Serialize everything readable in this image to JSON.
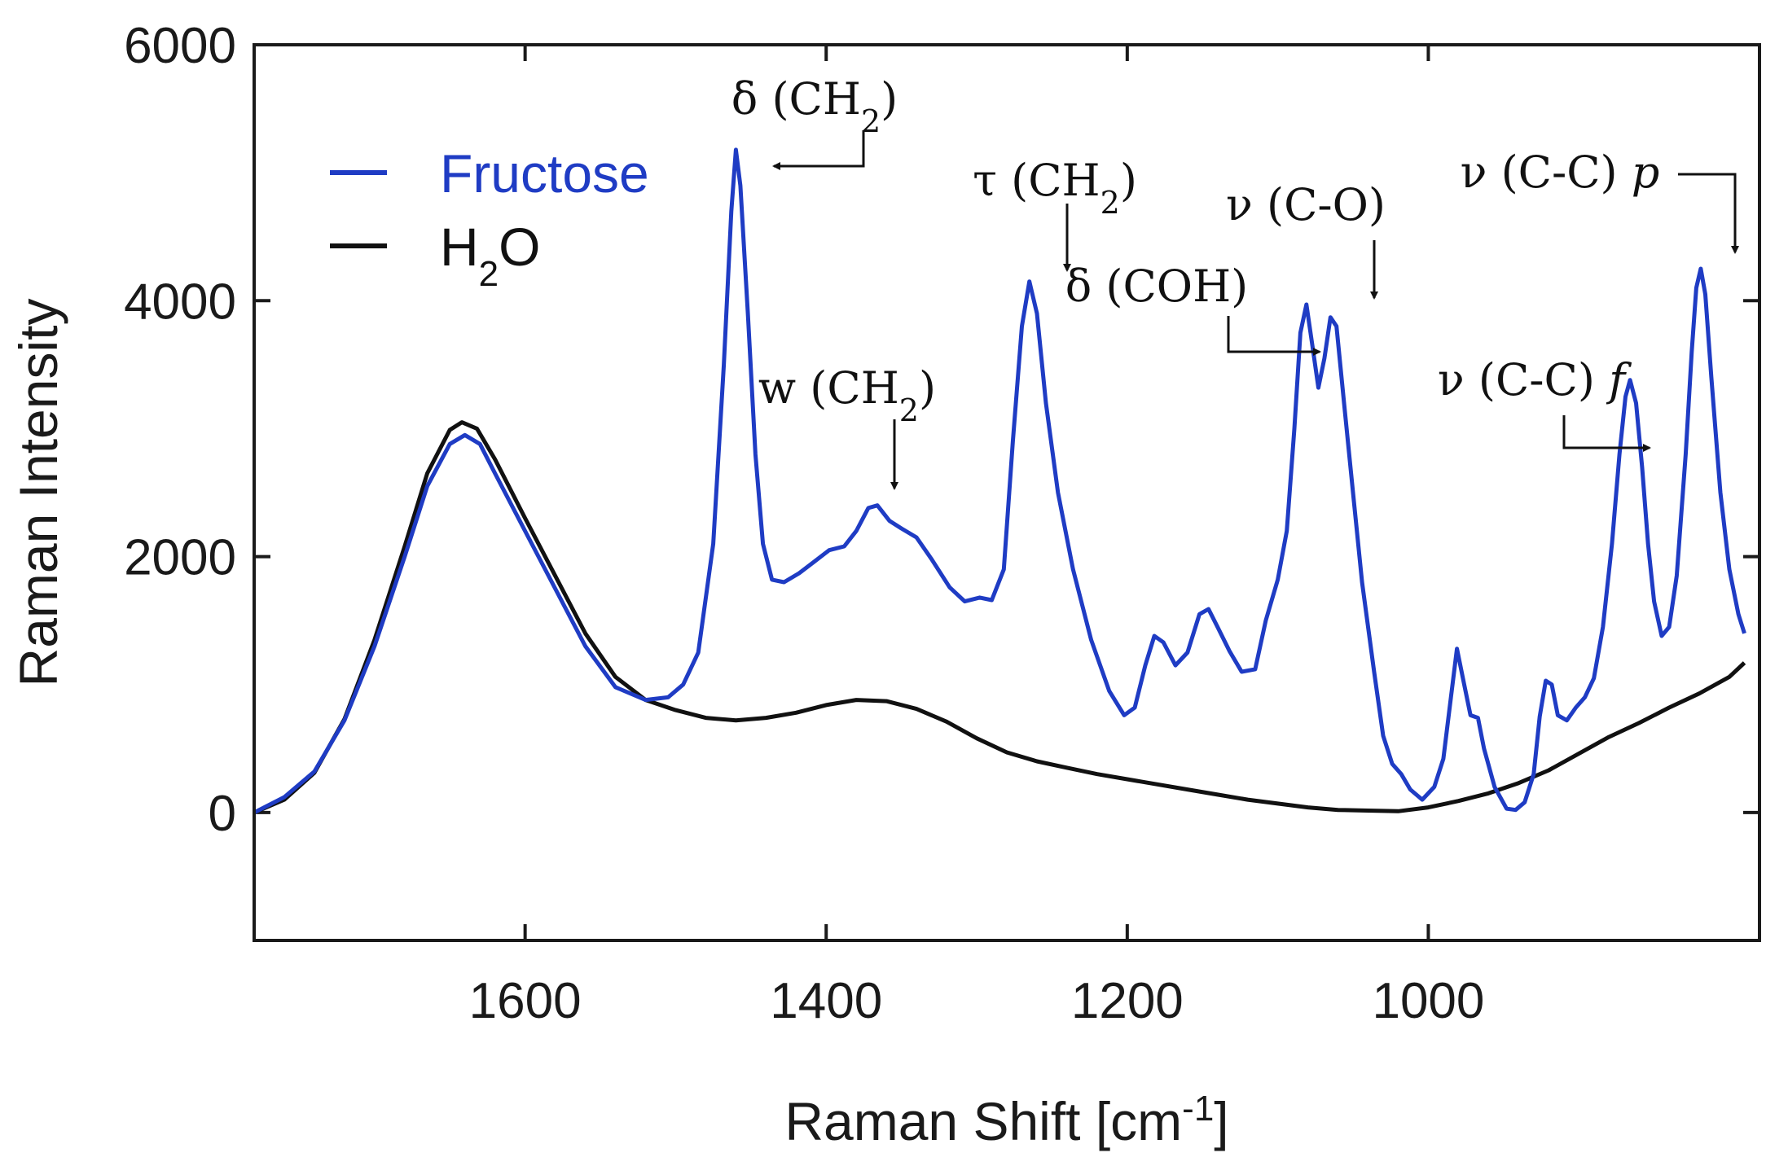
{
  "chart_data": {
    "type": "line",
    "title": "",
    "xlabel": "Raman Shift [cm",
    "xlabel_sup": "-1",
    "xlabel_close": "]",
    "ylabel": "Raman Intensity",
    "xlim": [
      1780,
      780
    ],
    "ylim": [
      -1000,
      6000
    ],
    "x_reversed": true,
    "x_ticks": [
      1600,
      1400,
      1200,
      1000
    ],
    "x_tick_labels": [
      "1600",
      "1400",
      "1200",
      "1000"
    ],
    "y_ticks": [
      0,
      2000,
      4000,
      6000
    ],
    "y_tick_labels": [
      "0",
      "2000",
      "4000",
      "6000"
    ],
    "grid": false,
    "legend_position": "top-left",
    "colors": {
      "fructose": "#1f3cc4",
      "water": "#111111",
      "axis": "#1a1a1a"
    },
    "series": [
      {
        "name": "Fructose",
        "legend_label": "Fructose",
        "color": "#1f3cc4",
        "points": [
          [
            1780,
            0
          ],
          [
            1760,
            120
          ],
          [
            1740,
            320
          ],
          [
            1720,
            720
          ],
          [
            1700,
            1300
          ],
          [
            1680,
            2000
          ],
          [
            1665,
            2550
          ],
          [
            1650,
            2880
          ],
          [
            1640,
            2950
          ],
          [
            1630,
            2880
          ],
          [
            1620,
            2650
          ],
          [
            1600,
            2200
          ],
          [
            1580,
            1750
          ],
          [
            1560,
            1300
          ],
          [
            1540,
            980
          ],
          [
            1520,
            880
          ],
          [
            1505,
            900
          ],
          [
            1495,
            1000
          ],
          [
            1485,
            1250
          ],
          [
            1475,
            2100
          ],
          [
            1468,
            3500
          ],
          [
            1463,
            4700
          ],
          [
            1460,
            5180
          ],
          [
            1457,
            4900
          ],
          [
            1452,
            3900
          ],
          [
            1447,
            2800
          ],
          [
            1442,
            2100
          ],
          [
            1436,
            1820
          ],
          [
            1428,
            1800
          ],
          [
            1418,
            1870
          ],
          [
            1408,
            1960
          ],
          [
            1398,
            2050
          ],
          [
            1388,
            2080
          ],
          [
            1380,
            2200
          ],
          [
            1372,
            2380
          ],
          [
            1366,
            2400
          ],
          [
            1358,
            2280
          ],
          [
            1350,
            2220
          ],
          [
            1340,
            2150
          ],
          [
            1330,
            1980
          ],
          [
            1318,
            1760
          ],
          [
            1308,
            1650
          ],
          [
            1298,
            1680
          ],
          [
            1290,
            1660
          ],
          [
            1282,
            1900
          ],
          [
            1276,
            2900
          ],
          [
            1270,
            3800
          ],
          [
            1265,
            4150
          ],
          [
            1260,
            3900
          ],
          [
            1254,
            3200
          ],
          [
            1246,
            2500
          ],
          [
            1236,
            1900
          ],
          [
            1224,
            1350
          ],
          [
            1212,
            950
          ],
          [
            1202,
            760
          ],
          [
            1195,
            820
          ],
          [
            1188,
            1150
          ],
          [
            1182,
            1380
          ],
          [
            1176,
            1330
          ],
          [
            1168,
            1150
          ],
          [
            1160,
            1250
          ],
          [
            1152,
            1550
          ],
          [
            1146,
            1590
          ],
          [
            1140,
            1450
          ],
          [
            1132,
            1260
          ],
          [
            1124,
            1100
          ],
          [
            1115,
            1120
          ],
          [
            1108,
            1500
          ],
          [
            1100,
            1820
          ],
          [
            1094,
            2200
          ],
          [
            1089,
            3000
          ],
          [
            1085,
            3750
          ],
          [
            1081,
            3970
          ],
          [
            1077,
            3650
          ],
          [
            1073,
            3320
          ],
          [
            1069,
            3550
          ],
          [
            1065,
            3870
          ],
          [
            1061,
            3800
          ],
          [
            1056,
            3200
          ],
          [
            1050,
            2500
          ],
          [
            1044,
            1800
          ],
          [
            1036,
            1100
          ],
          [
            1030,
            600
          ],
          [
            1024,
            380
          ],
          [
            1018,
            300
          ],
          [
            1012,
            180
          ],
          [
            1004,
            100
          ],
          [
            996,
            200
          ],
          [
            990,
            420
          ],
          [
            985,
            900
          ],
          [
            981,
            1280
          ],
          [
            977,
            1050
          ],
          [
            972,
            760
          ],
          [
            967,
            740
          ],
          [
            963,
            500
          ],
          [
            956,
            200
          ],
          [
            948,
            30
          ],
          [
            942,
            20
          ],
          [
            936,
            80
          ],
          [
            930,
            300
          ],
          [
            926,
            750
          ],
          [
            922,
            1030
          ],
          [
            918,
            1000
          ],
          [
            914,
            760
          ],
          [
            908,
            720
          ],
          [
            902,
            820
          ],
          [
            896,
            900
          ],
          [
            890,
            1050
          ],
          [
            884,
            1450
          ],
          [
            878,
            2100
          ],
          [
            873,
            2800
          ],
          [
            869,
            3250
          ],
          [
            866,
            3380
          ],
          [
            862,
            3200
          ],
          [
            858,
            2700
          ],
          [
            854,
            2100
          ],
          [
            850,
            1650
          ],
          [
            845,
            1380
          ],
          [
            840,
            1450
          ],
          [
            835,
            1850
          ],
          [
            829,
            2800
          ],
          [
            825,
            3600
          ],
          [
            822,
            4100
          ],
          [
            819,
            4250
          ],
          [
            816,
            4050
          ],
          [
            812,
            3400
          ],
          [
            806,
            2500
          ],
          [
            800,
            1900
          ],
          [
            794,
            1550
          ],
          [
            790,
            1400
          ]
        ]
      },
      {
        "name": "H2O",
        "legend_label": "H",
        "legend_sub": "2",
        "legend_tail": "O",
        "color": "#111111",
        "points": [
          [
            1780,
            0
          ],
          [
            1760,
            100
          ],
          [
            1740,
            310
          ],
          [
            1720,
            730
          ],
          [
            1700,
            1350
          ],
          [
            1680,
            2080
          ],
          [
            1665,
            2650
          ],
          [
            1650,
            2990
          ],
          [
            1642,
            3050
          ],
          [
            1632,
            3000
          ],
          [
            1620,
            2760
          ],
          [
            1600,
            2300
          ],
          [
            1580,
            1850
          ],
          [
            1560,
            1400
          ],
          [
            1540,
            1060
          ],
          [
            1520,
            880
          ],
          [
            1500,
            800
          ],
          [
            1480,
            740
          ],
          [
            1460,
            720
          ],
          [
            1440,
            740
          ],
          [
            1420,
            780
          ],
          [
            1400,
            840
          ],
          [
            1380,
            880
          ],
          [
            1360,
            870
          ],
          [
            1340,
            810
          ],
          [
            1320,
            710
          ],
          [
            1300,
            580
          ],
          [
            1280,
            470
          ],
          [
            1260,
            400
          ],
          [
            1240,
            350
          ],
          [
            1220,
            300
          ],
          [
            1200,
            260
          ],
          [
            1180,
            220
          ],
          [
            1160,
            180
          ],
          [
            1140,
            140
          ],
          [
            1120,
            100
          ],
          [
            1100,
            70
          ],
          [
            1080,
            40
          ],
          [
            1060,
            20
          ],
          [
            1040,
            15
          ],
          [
            1020,
            10
          ],
          [
            1000,
            40
          ],
          [
            980,
            90
          ],
          [
            960,
            150
          ],
          [
            940,
            230
          ],
          [
            920,
            330
          ],
          [
            900,
            460
          ],
          [
            880,
            590
          ],
          [
            860,
            700
          ],
          [
            840,
            820
          ],
          [
            820,
            930
          ],
          [
            800,
            1060
          ],
          [
            790,
            1170
          ]
        ]
      }
    ],
    "annotations": [
      {
        "label": "δ (CH",
        "sub": "2",
        "tail": ")",
        "x": 1460,
        "y": 5180
      },
      {
        "label": "w (CH",
        "sub": "2",
        "tail": ")",
        "x": 1372,
        "y": 2400
      },
      {
        "label": "τ (CH",
        "sub": "2",
        "tail": ")",
        "x": 1265,
        "y": 4150
      },
      {
        "label": "δ (COH)",
        "x": 1083,
        "y": 3960
      },
      {
        "label": "ν (C-O)",
        "x": 1065,
        "y": 3870
      },
      {
        "label": "ν (C-C) ",
        "italic": "f",
        "x": 866,
        "y": 3380
      },
      {
        "label": "ν (C-C) ",
        "italic": "p",
        "x": 819,
        "y": 4250
      }
    ]
  }
}
